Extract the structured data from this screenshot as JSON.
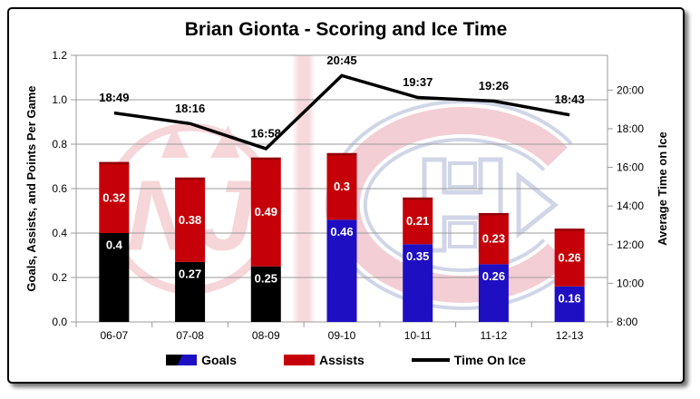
{
  "title": "Brian Gionta - Scoring and Ice Time",
  "chart_data": {
    "type": "bar",
    "subtype": "stacked-bar-with-line-combo",
    "categories": [
      "06-07",
      "07-08",
      "08-09",
      "09-10",
      "10-11",
      "11-12",
      "12-13"
    ],
    "series": [
      {
        "name": "Goals",
        "type": "bar",
        "values": [
          0.4,
          0.27,
          0.25,
          0.46,
          0.35,
          0.26,
          0.16
        ],
        "labels": [
          "0.4",
          "0.27",
          "0.25",
          "0.46",
          "0.35",
          "0.26",
          "0.16"
        ],
        "point_colors": [
          "#000000",
          "#000000",
          "#000000",
          "#1E0FC3",
          "#1E0FC3",
          "#1E0FC3",
          "#1E0FC3"
        ]
      },
      {
        "name": "Assists",
        "type": "bar",
        "values": [
          0.32,
          0.38,
          0.49,
          0.3,
          0.21,
          0.23,
          0.26
        ],
        "labels": [
          "0.32",
          "0.38",
          "0.49",
          "0.3",
          "0.21",
          "0.23",
          "0.26"
        ],
        "color": "#C50008"
      },
      {
        "name": "Time On Ice",
        "type": "line",
        "values": [
          "18:49",
          "18:16",
          "16:58",
          "20:45",
          "19:37",
          "19:26",
          "18:43"
        ],
        "color": "#000000"
      }
    ],
    "left_axis": {
      "label": "Goals, Assists, and Points Per Game",
      "min": 0.0,
      "max": 1.2,
      "tick_labels": [
        "0.0",
        "0.2",
        "0.4",
        "0.6",
        "0.8",
        "1.0",
        "1.2"
      ]
    },
    "right_axis": {
      "label": "Average Time on Ice",
      "min_minutes": 8,
      "plot_max_minutes": 21.8,
      "tick_labels": [
        "8:00",
        "10:00",
        "12:00",
        "14:00",
        "16:00",
        "18:00",
        "20:00"
      ]
    },
    "legend": {
      "position": "bottom",
      "entries": [
        "Goals",
        "Assists",
        "Time On Ice"
      ]
    },
    "grid": true
  },
  "colors": {
    "grid": "#9B9B9B",
    "bar_value_label": "#FFFFFF",
    "line_value_label": "#000000",
    "bar_top_shade": "rgba(0,0,0,0.25)",
    "watermark_red": "#CC1122",
    "watermark_canadiens_red": "#C8102E",
    "watermark_blue": "#19398A"
  },
  "watermarks": {
    "left_logo": "devils-logo",
    "right_logo": "canadiens-logo",
    "divider_stripe": true
  }
}
